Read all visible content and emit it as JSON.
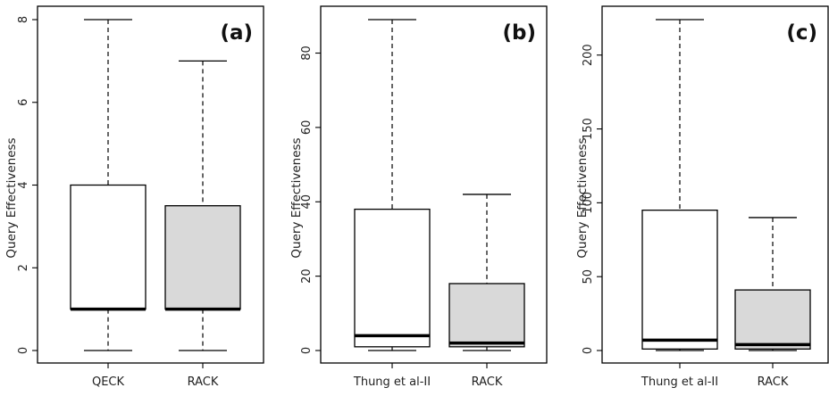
{
  "chart_data": [
    {
      "type": "box",
      "panel_label": "(a)",
      "ylabel": "Query Effectiveness",
      "ylim": [
        0,
        8
      ],
      "yticks": [
        0,
        2,
        4,
        6,
        8
      ],
      "categories": [
        "QECK",
        "RACK"
      ],
      "colors": [
        "#ffffff",
        "#d9d9d9"
      ],
      "boxes": [
        {
          "min": 0,
          "q1": 1,
          "median": 1,
          "q3": 4,
          "max": 8
        },
        {
          "min": 0,
          "q1": 1,
          "median": 1,
          "q3": 3.5,
          "max": 7
        }
      ]
    },
    {
      "type": "box",
      "panel_label": "(b)",
      "ylabel": "Query Effectiveness",
      "ylim": [
        0,
        89
      ],
      "yticks": [
        0,
        20,
        40,
        60,
        80
      ],
      "categories": [
        "Thung et al-II",
        "RACK"
      ],
      "colors": [
        "#ffffff",
        "#d9d9d9"
      ],
      "boxes": [
        {
          "min": 0,
          "q1": 1,
          "median": 4,
          "q3": 38,
          "max": 89
        },
        {
          "min": 0,
          "q1": 1,
          "median": 2,
          "q3": 18,
          "max": 42
        }
      ]
    },
    {
      "type": "box",
      "panel_label": "(c)",
      "ylabel": "Query Effectiveness",
      "ylim": [
        0,
        224
      ],
      "yticks": [
        0,
        50,
        100,
        150,
        200
      ],
      "categories": [
        "Thung et al-II",
        "RACK"
      ],
      "colors": [
        "#ffffff",
        "#d9d9d9"
      ],
      "boxes": [
        {
          "min": 0,
          "q1": 1,
          "median": 7,
          "q3": 95,
          "max": 224
        },
        {
          "min": 0,
          "q1": 1,
          "median": 4,
          "q3": 41,
          "max": 90
        }
      ]
    }
  ]
}
